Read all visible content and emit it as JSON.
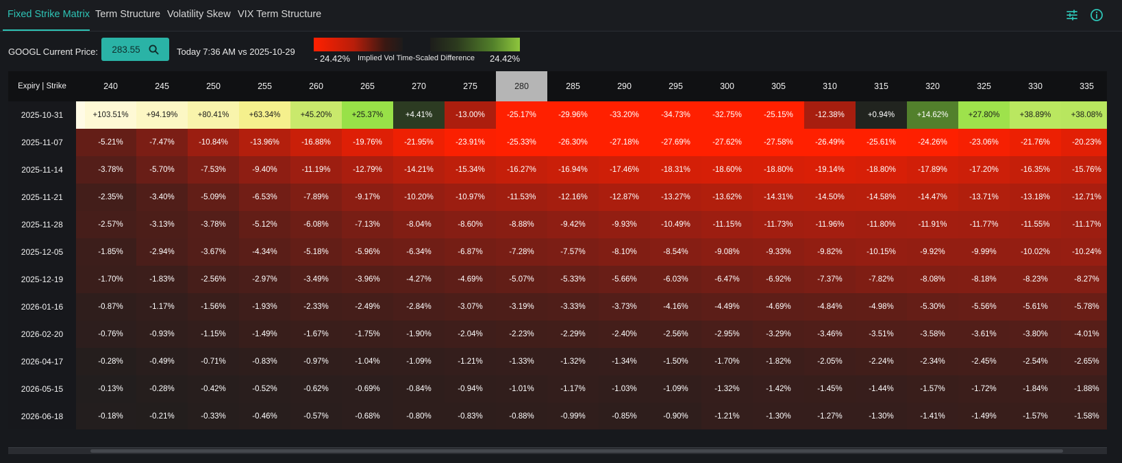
{
  "tabs": [
    {
      "label": "Fixed Strike Matrix",
      "active": true
    },
    {
      "label": "Term Structure",
      "active": false
    },
    {
      "label": "Volatility Skew",
      "active": false
    },
    {
      "label": "VIX Term Structure",
      "active": false
    }
  ],
  "icons": {
    "settings": "sliders-icon",
    "info": "info-icon"
  },
  "controls": {
    "price_label": "GOOGL Current Price:",
    "price_value": "283.55",
    "compare_label": "Today 7:36 AM vs 2025-10-29"
  },
  "legend": {
    "min": "- 24.42%",
    "title": "Implied Vol Time-Scaled Difference",
    "max": "24.42%"
  },
  "colors": {
    "accent": "#2ec4b6",
    "price_button": "#2ab3a6",
    "negative": "#ff2000",
    "positive": "#8ec63d",
    "background": "#17191d"
  },
  "matrix": {
    "corner": "Expiry | Strike",
    "atm_strike": "280",
    "strikes": [
      "240",
      "245",
      "250",
      "255",
      "260",
      "265",
      "270",
      "275",
      "280",
      "285",
      "290",
      "295",
      "300",
      "305",
      "310",
      "315",
      "320",
      "325",
      "330",
      "335"
    ],
    "rows": [
      {
        "expiry": "2025-10-31",
        "values": [
          "+103.51%",
          "+94.19%",
          "+80.41%",
          "+63.34%",
          "+45.20%",
          "+25.37%",
          "+4.41%",
          "-13.00%",
          "-25.17%",
          "-29.96%",
          "-33.20%",
          "-34.73%",
          "-32.75%",
          "-25.15%",
          "-12.38%",
          "+0.94%",
          "+14.62%",
          "+27.80%",
          "+38.89%",
          "+38.08%"
        ]
      },
      {
        "expiry": "2025-11-07",
        "values": [
          "-5.21%",
          "-7.47%",
          "-10.84%",
          "-13.96%",
          "-16.88%",
          "-19.76%",
          "-21.95%",
          "-23.91%",
          "-25.33%",
          "-26.30%",
          "-27.18%",
          "-27.69%",
          "-27.62%",
          "-27.58%",
          "-26.49%",
          "-25.61%",
          "-24.26%",
          "-23.06%",
          "-21.76%",
          "-20.23%"
        ]
      },
      {
        "expiry": "2025-11-14",
        "values": [
          "-3.78%",
          "-5.70%",
          "-7.53%",
          "-9.40%",
          "-11.19%",
          "-12.79%",
          "-14.21%",
          "-15.34%",
          "-16.27%",
          "-16.94%",
          "-17.46%",
          "-18.31%",
          "-18.60%",
          "-18.80%",
          "-19.14%",
          "-18.80%",
          "-17.89%",
          "-17.20%",
          "-16.35%",
          "-15.76%"
        ]
      },
      {
        "expiry": "2025-11-21",
        "values": [
          "-2.35%",
          "-3.40%",
          "-5.09%",
          "-6.53%",
          "-7.89%",
          "-9.17%",
          "-10.20%",
          "-10.97%",
          "-11.53%",
          "-12.16%",
          "-12.87%",
          "-13.27%",
          "-13.62%",
          "-14.31%",
          "-14.50%",
          "-14.58%",
          "-14.47%",
          "-13.71%",
          "-13.18%",
          "-12.71%"
        ]
      },
      {
        "expiry": "2025-11-28",
        "values": [
          "-2.57%",
          "-3.13%",
          "-3.78%",
          "-5.12%",
          "-6.08%",
          "-7.13%",
          "-8.04%",
          "-8.60%",
          "-8.88%",
          "-9.42%",
          "-9.93%",
          "-10.49%",
          "-11.15%",
          "-11.73%",
          "-11.96%",
          "-11.80%",
          "-11.91%",
          "-11.77%",
          "-11.55%",
          "-11.17%"
        ]
      },
      {
        "expiry": "2025-12-05",
        "values": [
          "-1.85%",
          "-2.94%",
          "-3.67%",
          "-4.34%",
          "-5.18%",
          "-5.96%",
          "-6.34%",
          "-6.87%",
          "-7.28%",
          "-7.57%",
          "-8.10%",
          "-8.54%",
          "-9.08%",
          "-9.33%",
          "-9.82%",
          "-10.15%",
          "-9.92%",
          "-9.99%",
          "-10.02%",
          "-10.24%"
        ]
      },
      {
        "expiry": "2025-12-19",
        "values": [
          "-1.70%",
          "-1.83%",
          "-2.56%",
          "-2.97%",
          "-3.49%",
          "-3.96%",
          "-4.27%",
          "-4.69%",
          "-5.07%",
          "-5.33%",
          "-5.66%",
          "-6.03%",
          "-6.47%",
          "-6.92%",
          "-7.37%",
          "-7.82%",
          "-8.08%",
          "-8.18%",
          "-8.23%",
          "-8.27%"
        ]
      },
      {
        "expiry": "2026-01-16",
        "values": [
          "-0.87%",
          "-1.17%",
          "-1.56%",
          "-1.93%",
          "-2.33%",
          "-2.49%",
          "-2.84%",
          "-3.07%",
          "-3.19%",
          "-3.33%",
          "-3.73%",
          "-4.16%",
          "-4.49%",
          "-4.69%",
          "-4.84%",
          "-4.98%",
          "-5.30%",
          "-5.56%",
          "-5.61%",
          "-5.78%"
        ]
      },
      {
        "expiry": "2026-02-20",
        "values": [
          "-0.76%",
          "-0.93%",
          "-1.15%",
          "-1.49%",
          "-1.67%",
          "-1.75%",
          "-1.90%",
          "-2.04%",
          "-2.23%",
          "-2.29%",
          "-2.40%",
          "-2.56%",
          "-2.95%",
          "-3.29%",
          "-3.46%",
          "-3.51%",
          "-3.58%",
          "-3.61%",
          "-3.80%",
          "-4.01%"
        ]
      },
      {
        "expiry": "2026-04-17",
        "values": [
          "-0.28%",
          "-0.49%",
          "-0.71%",
          "-0.83%",
          "-0.97%",
          "-1.04%",
          "-1.09%",
          "-1.21%",
          "-1.33%",
          "-1.32%",
          "-1.34%",
          "-1.50%",
          "-1.70%",
          "-1.82%",
          "-2.05%",
          "-2.24%",
          "-2.34%",
          "-2.45%",
          "-2.54%",
          "-2.65%"
        ]
      },
      {
        "expiry": "2026-05-15",
        "values": [
          "-0.13%",
          "-0.28%",
          "-0.42%",
          "-0.52%",
          "-0.62%",
          "-0.69%",
          "-0.84%",
          "-0.94%",
          "-1.01%",
          "-1.17%",
          "-1.03%",
          "-1.09%",
          "-1.32%",
          "-1.42%",
          "-1.45%",
          "-1.44%",
          "-1.57%",
          "-1.72%",
          "-1.84%",
          "-1.88%"
        ]
      },
      {
        "expiry": "2026-06-18",
        "values": [
          "-0.18%",
          "-0.21%",
          "-0.33%",
          "-0.46%",
          "-0.57%",
          "-0.68%",
          "-0.80%",
          "-0.83%",
          "-0.88%",
          "-0.99%",
          "-0.85%",
          "-0.90%",
          "-1.21%",
          "-1.30%",
          "-1.27%",
          "-1.30%",
          "-1.41%",
          "-1.49%",
          "-1.57%",
          "-1.58%"
        ]
      }
    ]
  }
}
